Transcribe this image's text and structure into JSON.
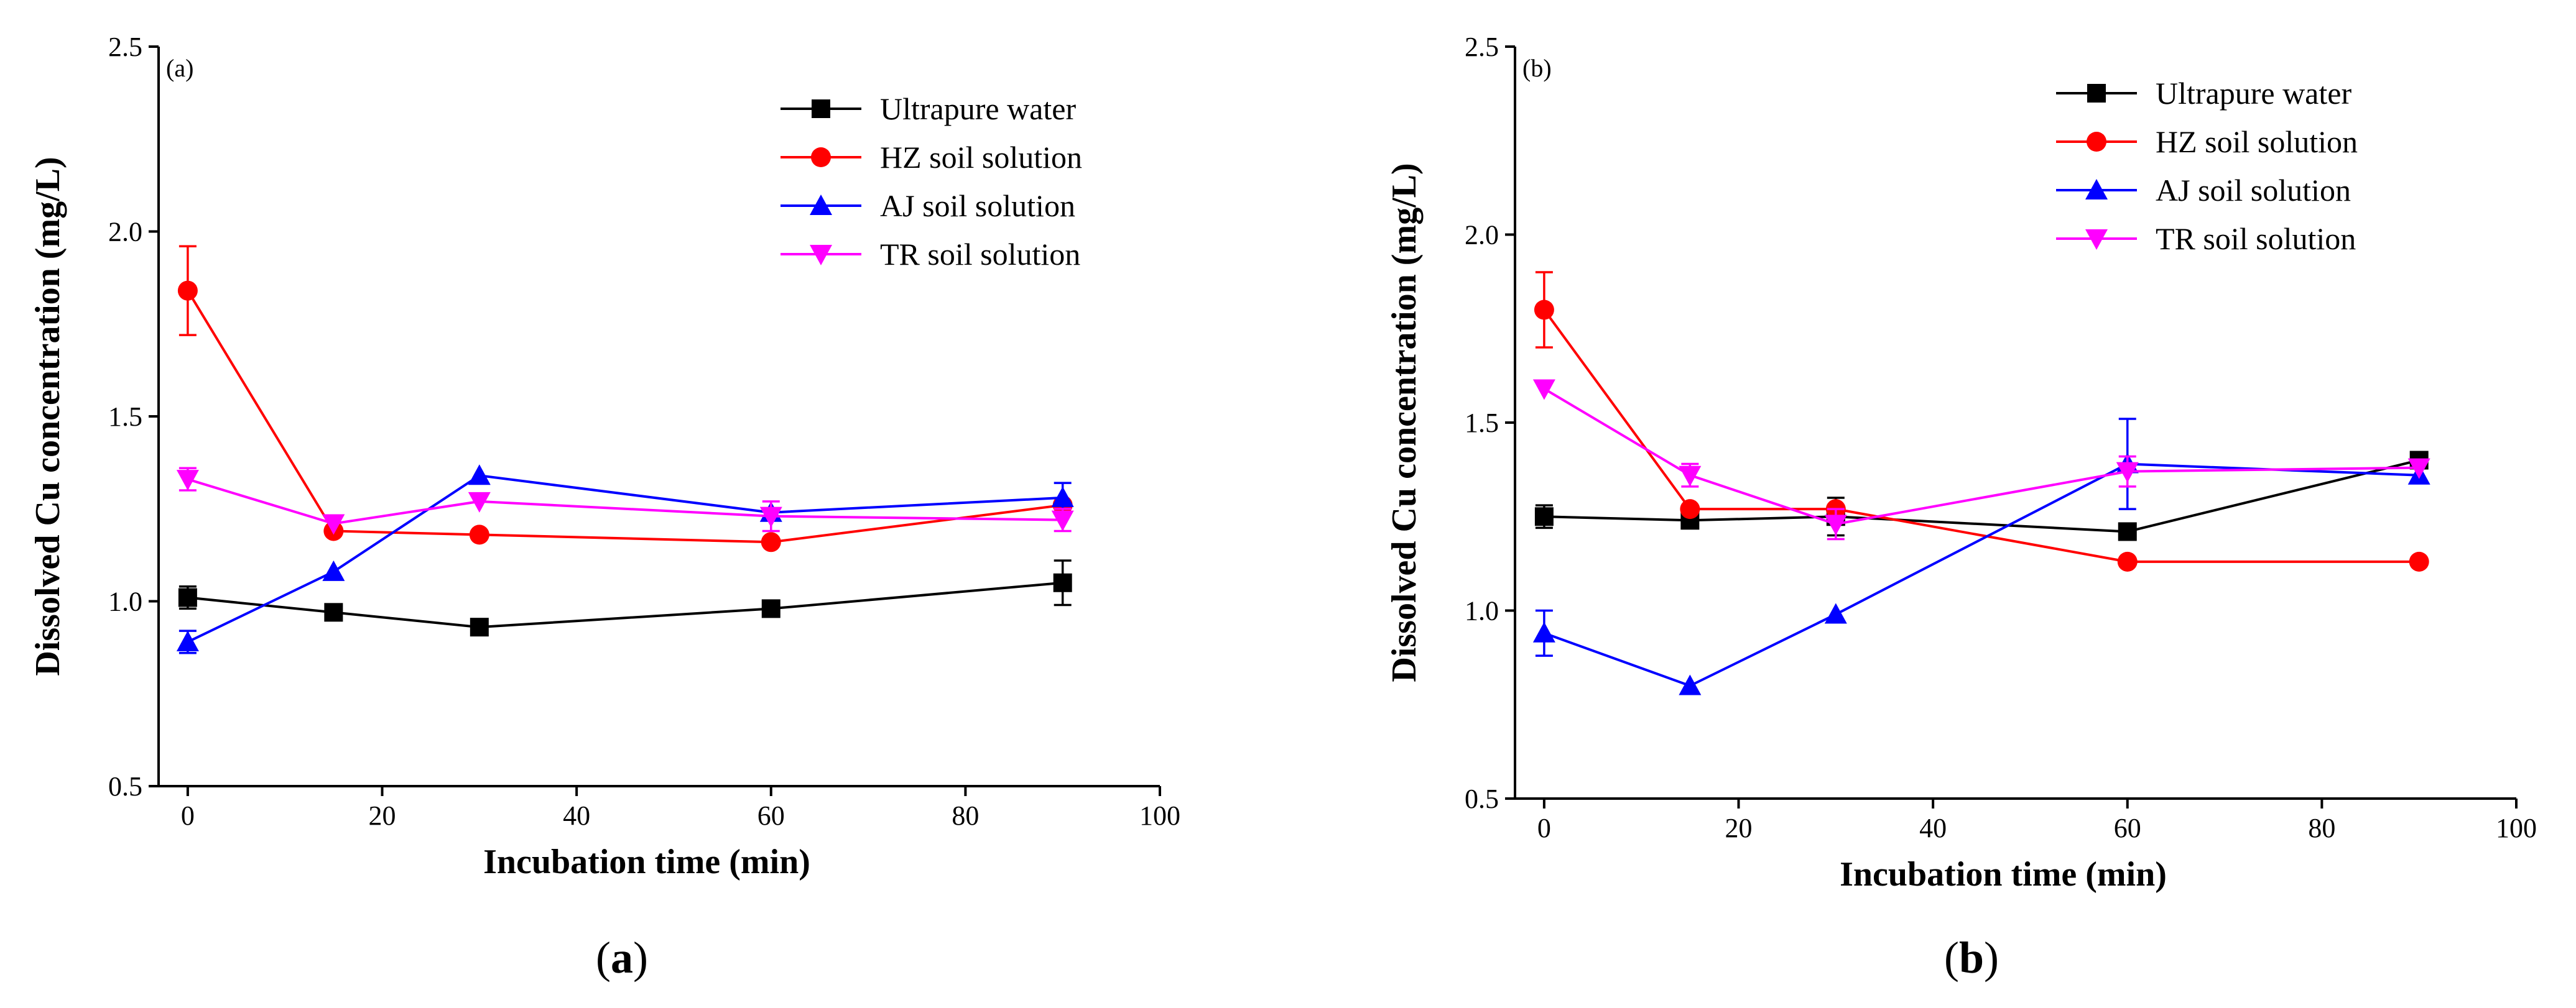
{
  "chart_data": [
    {
      "type": "line",
      "panel_label": "(a)",
      "caption": "a",
      "xlabel": "Incubation time (min)",
      "ylabel": "Dissolved Cu concentration (mg/L)",
      "xlim": [
        -3,
        100
      ],
      "ylim": [
        0.5,
        2.5
      ],
      "xticks": [
        0,
        20,
        40,
        60,
        80,
        100
      ],
      "yticks": [
        "0.5",
        "1.0",
        "1.5",
        "2.0",
        "2.5"
      ],
      "x": [
        0,
        15,
        30,
        60,
        90
      ],
      "legend_position": "top-right",
      "series": [
        {
          "name": "Ultrapure water",
          "color": "#000000",
          "marker": "square",
          "values": [
            1.01,
            0.97,
            0.93,
            0.98,
            1.05
          ],
          "errors": [
            0.03,
            0.02,
            0.02,
            0.02,
            0.06
          ]
        },
        {
          "name": "HZ soil solution",
          "color": "#ff0000",
          "marker": "circle",
          "values": [
            1.84,
            1.19,
            1.18,
            1.16,
            1.26
          ],
          "errors": [
            0.12,
            0.02,
            0.02,
            0.02,
            0.02
          ]
        },
        {
          "name": "AJ soil solution",
          "color": "#0000ff",
          "marker": "triangle-up",
          "values": [
            0.89,
            1.08,
            1.34,
            1.24,
            1.28
          ],
          "errors": [
            0.03,
            0.02,
            0.02,
            0.02,
            0.04
          ]
        },
        {
          "name": "TR soil solution",
          "color": "#ff00ff",
          "marker": "triangle-down",
          "values": [
            1.33,
            1.21,
            1.27,
            1.23,
            1.22
          ],
          "errors": [
            0.03,
            0.02,
            0.02,
            0.04,
            0.03
          ]
        }
      ]
    },
    {
      "type": "line",
      "panel_label": "(b)",
      "caption": "b",
      "xlabel": "Incubation time (min)",
      "ylabel": "Dissolved Cu concentration (mg/L)",
      "xlim": [
        -3,
        100
      ],
      "ylim": [
        0.5,
        2.5
      ],
      "xticks": [
        0,
        20,
        40,
        60,
        80,
        100
      ],
      "yticks": [
        "0.5",
        "1.0",
        "1.5",
        "2.0",
        "2.5"
      ],
      "x": [
        0,
        15,
        30,
        60,
        90
      ],
      "legend_position": "top-right",
      "series": [
        {
          "name": "Ultrapure water",
          "color": "#000000",
          "marker": "square",
          "values": [
            1.25,
            1.24,
            1.25,
            1.21,
            1.4
          ],
          "errors": [
            0.03,
            0.02,
            0.05,
            0.02,
            0.02
          ]
        },
        {
          "name": "HZ soil solution",
          "color": "#ff0000",
          "marker": "circle",
          "values": [
            1.8,
            1.27,
            1.27,
            1.13,
            1.13
          ],
          "errors": [
            0.1,
            0.02,
            0.02,
            0.02,
            0.02
          ]
        },
        {
          "name": "AJ soil solution",
          "color": "#0000ff",
          "marker": "triangle-up",
          "values": [
            0.94,
            0.8,
            0.99,
            1.39,
            1.36
          ],
          "errors": [
            0.06,
            0.02,
            0.02,
            0.12,
            0.02
          ]
        },
        {
          "name": "TR soil solution",
          "color": "#ff00ff",
          "marker": "triangle-down",
          "values": [
            1.59,
            1.36,
            1.23,
            1.37,
            1.38
          ],
          "errors": [
            0.02,
            0.03,
            0.04,
            0.04,
            0.02
          ]
        }
      ]
    }
  ]
}
